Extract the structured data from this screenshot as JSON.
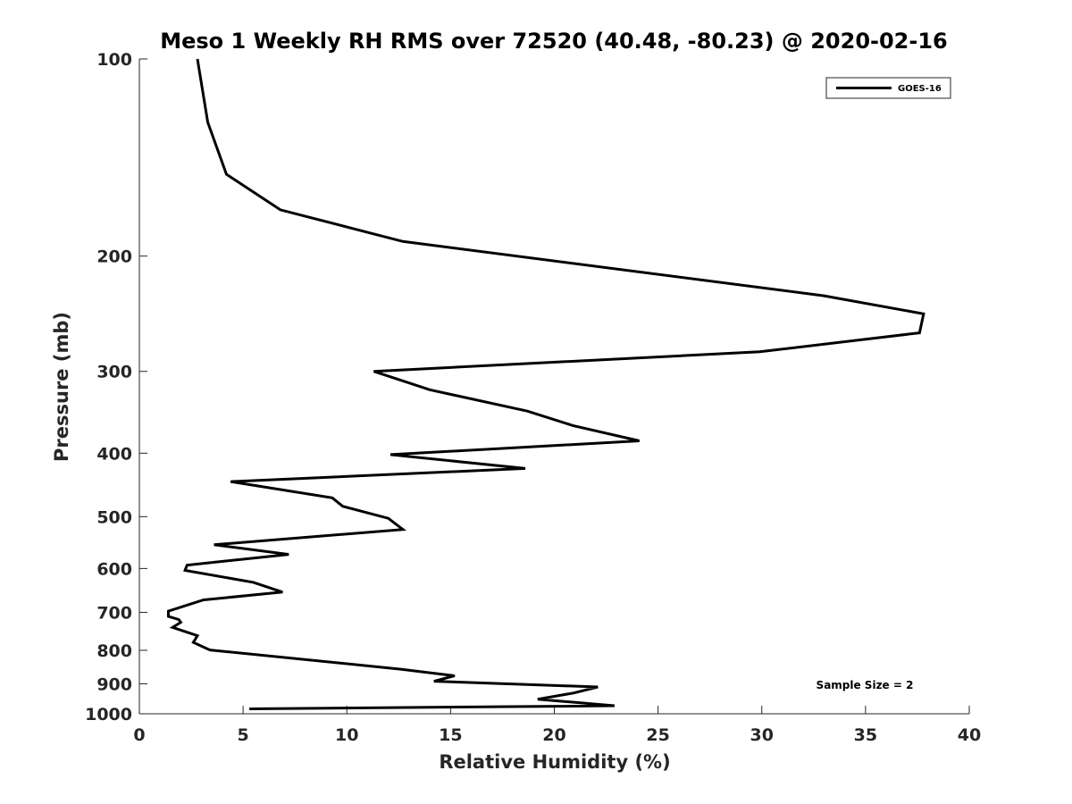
{
  "chart_data": {
    "type": "line",
    "title": "Meso 1 Weekly RH RMS over 72520 (40.48, -80.23) @ 2020-02-16",
    "xlabel": "Relative Humidity (%)",
    "ylabel": "Pressure (mb)",
    "xlim": [
      0,
      40
    ],
    "ylim": [
      100,
      1000
    ],
    "yscale": "log",
    "y_reversed": true,
    "x_ticks": [
      0,
      5,
      10,
      15,
      20,
      25,
      30,
      35,
      40
    ],
    "x_tick_labels": [
      "0",
      "5",
      "10",
      "15",
      "20",
      "25",
      "30",
      "35",
      "40"
    ],
    "y_ticks": [
      100,
      200,
      300,
      400,
      500,
      600,
      700,
      800,
      900,
      1000
    ],
    "y_tick_labels": [
      "100",
      "200",
      "300",
      "400",
      "500",
      "600",
      "700",
      "800",
      "900",
      "1000"
    ],
    "grid": false,
    "legend_position": "top-right",
    "annotation": "Sample Size = 2",
    "series": [
      {
        "name": "GOES-16",
        "color": "#000000",
        "x": [
          2.8,
          3.3,
          4.2,
          6.8,
          12.7,
          33.0,
          37.8,
          37.6,
          29.9,
          11.3,
          14.0,
          18.7,
          20.9,
          24.1,
          12.1,
          18.6,
          4.4,
          9.3,
          9.8,
          12.0,
          12.7,
          3.6,
          7.2,
          2.3,
          2.2,
          5.5,
          6.9,
          3.1,
          1.4,
          1.4,
          1.9,
          2.0,
          1.6,
          2.8,
          2.6,
          3.4,
          12.6,
          15.2,
          14.2,
          22.1,
          20.9,
          19.2,
          22.9,
          5.3
        ],
        "y": [
          100,
          125,
          150,
          170,
          190,
          230,
          245,
          262,
          280,
          300,
          320,
          345,
          363,
          383,
          402,
          422,
          442,
          468,
          482,
          503,
          523,
          552,
          571,
          593,
          604,
          630,
          652,
          670,
          697,
          710,
          718,
          725,
          738,
          760,
          778,
          799,
          855,
          875,
          892,
          910,
          930,
          950,
          972,
          983
        ]
      }
    ]
  }
}
